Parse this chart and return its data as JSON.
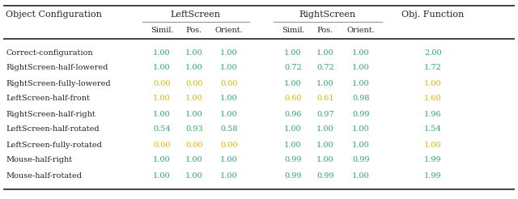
{
  "rows": [
    {
      "label": "Correct-configuration",
      "ls": [
        "1.00",
        "1.00",
        "1.00"
      ],
      "rs": [
        "1.00",
        "1.00",
        "1.00"
      ],
      "obj": "2.00",
      "ls_colors": [
        "green",
        "green",
        "green"
      ],
      "rs_colors": [
        "green",
        "green",
        "green"
      ],
      "obj_color": "green"
    },
    {
      "label": "RightScreen-half-lowered",
      "ls": [
        "1.00",
        "1.00",
        "1.00"
      ],
      "rs": [
        "0.72",
        "0.72",
        "1.00"
      ],
      "obj": "1.72",
      "ls_colors": [
        "green",
        "green",
        "green"
      ],
      "rs_colors": [
        "green",
        "green",
        "green"
      ],
      "obj_color": "green"
    },
    {
      "label": "RightScreen-fully-lowered",
      "ls": [
        "0.00",
        "0.00",
        "0.00"
      ],
      "rs": [
        "1.00",
        "1.00",
        "1.00"
      ],
      "obj": "1.00",
      "ls_colors": [
        "yellow",
        "yellow",
        "yellow"
      ],
      "rs_colors": [
        "green",
        "green",
        "green"
      ],
      "obj_color": "yellow"
    },
    {
      "label": "LeftScreen-half-front",
      "ls": [
        "1.00",
        "1.00",
        "1.00"
      ],
      "rs": [
        "0.60",
        "0.61",
        "0.98"
      ],
      "obj": "1.60",
      "ls_colors": [
        "yellow",
        "yellow",
        "green"
      ],
      "rs_colors": [
        "yellow",
        "yellow",
        "green"
      ],
      "obj_color": "yellow"
    },
    {
      "label": "RightScreen-half-right",
      "ls": [
        "1.00",
        "1.00",
        "1.00"
      ],
      "rs": [
        "0.96",
        "0.97",
        "0.99"
      ],
      "obj": "1.96",
      "ls_colors": [
        "green",
        "green",
        "green"
      ],
      "rs_colors": [
        "green",
        "green",
        "green"
      ],
      "obj_color": "green"
    },
    {
      "label": "LeftScreen-half-rotated",
      "ls": [
        "0.54",
        "0.93",
        "0.58"
      ],
      "rs": [
        "1.00",
        "1.00",
        "1.00"
      ],
      "obj": "1.54",
      "ls_colors": [
        "green",
        "green",
        "green"
      ],
      "rs_colors": [
        "green",
        "green",
        "green"
      ],
      "obj_color": "green"
    },
    {
      "label": "LeftScreen-fully-rotated",
      "ls": [
        "0.00",
        "0.00",
        "0.00"
      ],
      "rs": [
        "1.00",
        "1.00",
        "1.00"
      ],
      "obj": "1.00",
      "ls_colors": [
        "yellow",
        "yellow",
        "yellow"
      ],
      "rs_colors": [
        "green",
        "green",
        "green"
      ],
      "obj_color": "yellow"
    },
    {
      "label": "Mouse-half-right",
      "ls": [
        "1.00",
        "1.00",
        "1.00"
      ],
      "rs": [
        "0.99",
        "1.00",
        "0.99"
      ],
      "obj": "1.99",
      "ls_colors": [
        "green",
        "green",
        "green"
      ],
      "rs_colors": [
        "green",
        "green",
        "green"
      ],
      "obj_color": "green"
    },
    {
      "label": "Mouse-half-rotated",
      "ls": [
        "1.00",
        "1.00",
        "1.00"
      ],
      "rs": [
        "0.99",
        "0.99",
        "1.00"
      ],
      "obj": "1.99",
      "ls_colors": [
        "green",
        "green",
        "green"
      ],
      "rs_colors": [
        "green",
        "green",
        "green"
      ],
      "obj_color": "green"
    }
  ],
  "color_green": "#2ca86b",
  "color_yellow": "#d4b800",
  "color_black": "#222222",
  "color_gray": "#999999",
  "bg_color": "#ffffff"
}
